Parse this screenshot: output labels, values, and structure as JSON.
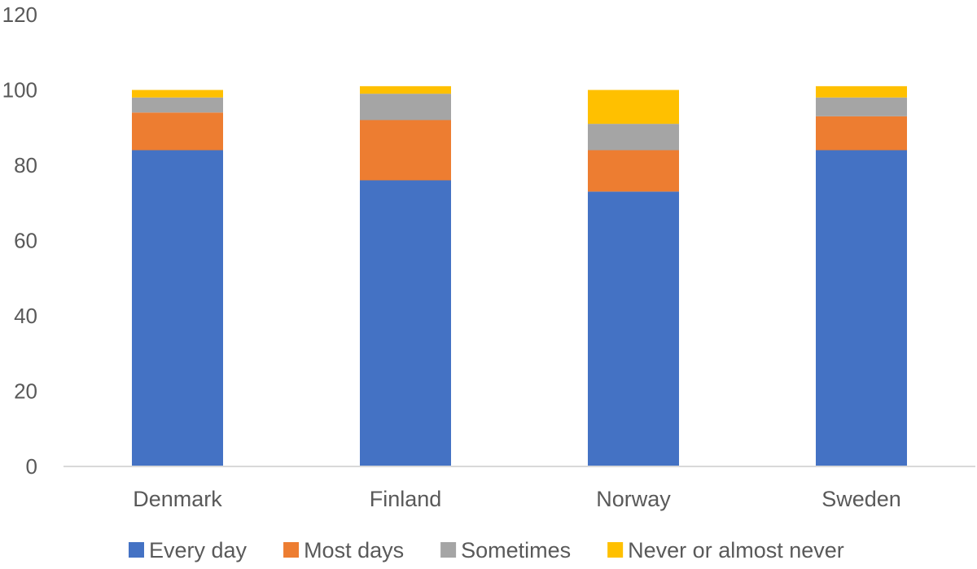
{
  "chart_data": {
    "type": "bar",
    "stacked": true,
    "categories": [
      "Denmark",
      "Finland",
      "Norway",
      "Sweden"
    ],
    "series": [
      {
        "name": "Every day",
        "values": [
          84,
          76,
          73,
          84
        ],
        "color": "#4472C4"
      },
      {
        "name": "Most days",
        "values": [
          10,
          16,
          11,
          9
        ],
        "color": "#ED7D31"
      },
      {
        "name": "Sometimes",
        "values": [
          4,
          7,
          7,
          5
        ],
        "color": "#A5A5A5"
      },
      {
        "name": "Never or almost never",
        "values": [
          2,
          2,
          9,
          3
        ],
        "color": "#FFC000"
      }
    ],
    "ylim": [
      0,
      120
    ],
    "yticks": [
      0,
      20,
      40,
      60,
      80,
      100,
      120
    ],
    "grid": false,
    "legend_position": "bottom"
  }
}
